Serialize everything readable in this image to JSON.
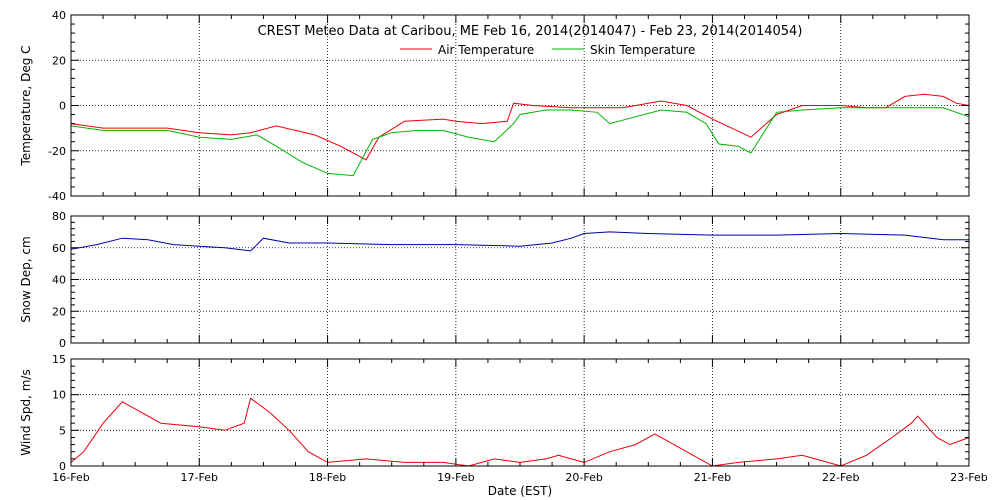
{
  "chart_data": [
    {
      "type": "line",
      "title": "CREST Meteo Data at Caribou, ME   Feb 16, 2014(2014047) - Feb 23, 2014(2014054)",
      "ylabel": "Temperature, Deg C",
      "ylim": [
        -40,
        40
      ],
      "yticks": [
        -40,
        -20,
        0,
        20,
        40
      ],
      "xlim": [
        0,
        7
      ],
      "grid": true,
      "legend": "top-center",
      "series": [
        {
          "name": "Air Temperature",
          "color": "#e8000b",
          "x": [
            0,
            0.25,
            0.5,
            0.75,
            1.0,
            1.25,
            1.4,
            1.6,
            1.9,
            2.1,
            2.3,
            2.4,
            2.6,
            2.9,
            3.0,
            3.2,
            3.4,
            3.45,
            3.6,
            3.9,
            4.1,
            4.3,
            4.6,
            4.8,
            5.0,
            5.15,
            5.3,
            5.5,
            5.7,
            6.0,
            6.2,
            6.35,
            6.5,
            6.65,
            6.8,
            6.9,
            7.0
          ],
          "y": [
            -8,
            -10,
            -10,
            -10,
            -12,
            -13,
            -12,
            -9,
            -13,
            -18,
            -24,
            -14,
            -7,
            -6,
            -7,
            -8,
            -7,
            1,
            0,
            -1,
            -1,
            -1,
            2,
            0,
            -6,
            -10,
            -14,
            -4,
            0,
            0,
            -1,
            -1,
            4,
            5,
            4,
            1,
            0
          ]
        },
        {
          "name": "Skin Temperature",
          "color": "#00b300",
          "x": [
            0,
            0.25,
            0.5,
            0.75,
            1.0,
            1.25,
            1.45,
            1.6,
            1.8,
            2.0,
            2.2,
            2.35,
            2.5,
            2.7,
            2.9,
            3.1,
            3.3,
            3.45,
            3.5,
            3.7,
            3.9,
            4.1,
            4.2,
            4.4,
            4.6,
            4.8,
            4.95,
            5.05,
            5.2,
            5.3,
            5.5,
            5.7,
            6.0,
            6.2,
            6.4,
            6.6,
            6.8,
            7.0
          ],
          "y": [
            -9,
            -11,
            -11,
            -11,
            -14,
            -15,
            -13,
            -18,
            -25,
            -30,
            -31,
            -15,
            -12,
            -11,
            -11,
            -14,
            -16,
            -8,
            -4,
            -2,
            -2,
            -3,
            -8,
            -5,
            -2,
            -3,
            -8,
            -17,
            -18,
            -21,
            -3,
            -2,
            -1,
            -1,
            -1,
            -1,
            -1,
            -5
          ]
        }
      ],
      "xticklabels": [
        "16-Feb",
        "17-Feb",
        "18-Feb",
        "19-Feb",
        "20-Feb",
        "21-Feb",
        "22-Feb",
        "23-Feb"
      ]
    },
    {
      "type": "line",
      "ylabel": "Snow Dep, cm",
      "ylim": [
        0,
        80
      ],
      "yticks": [
        0,
        20,
        40,
        60,
        80
      ],
      "xlim": [
        0,
        7
      ],
      "grid": true,
      "series": [
        {
          "color": "#0000a0",
          "x": [
            0,
            0.2,
            0.4,
            0.6,
            0.8,
            1.0,
            1.2,
            1.4,
            1.5,
            1.7,
            2.0,
            2.5,
            3.0,
            3.5,
            3.75,
            3.9,
            4.0,
            4.2,
            4.5,
            5.0,
            5.5,
            6.0,
            6.5,
            6.8,
            7.0
          ],
          "y": [
            59,
            62,
            66,
            65,
            62,
            61,
            60,
            58,
            66,
            63,
            63,
            62,
            62,
            61,
            63,
            66,
            69,
            70,
            69,
            68,
            68,
            69,
            68,
            65,
            65
          ]
        }
      ]
    },
    {
      "type": "line",
      "ylabel": "Wind Spd, m/s",
      "xlabel": "Date (EST)",
      "ylim": [
        0,
        15
      ],
      "yticks": [
        0,
        5,
        10,
        15
      ],
      "xlim": [
        0,
        7
      ],
      "grid": true,
      "series": [
        {
          "color": "#e8000b",
          "x": [
            0,
            0.1,
            0.25,
            0.4,
            0.5,
            0.7,
            1.0,
            1.2,
            1.35,
            1.4,
            1.55,
            1.7,
            1.85,
            2.0,
            2.3,
            2.6,
            2.9,
            3.1,
            3.3,
            3.5,
            3.7,
            3.8,
            3.9,
            4.0,
            4.2,
            4.4,
            4.55,
            4.7,
            4.9,
            5.0,
            5.2,
            5.5,
            5.7,
            5.9,
            6.0,
            6.2,
            6.4,
            6.55,
            6.6,
            6.75,
            6.85,
            7.0
          ],
          "y": [
            0.5,
            2,
            6,
            9,
            8,
            6,
            5.5,
            5,
            6,
            9.5,
            7.5,
            5,
            2,
            0.5,
            1,
            0.5,
            0.5,
            0,
            1,
            0.5,
            1,
            1.5,
            1,
            0.5,
            2,
            3,
            4.5,
            3,
            1,
            0,
            0.5,
            1,
            1.5,
            0.5,
            0,
            1.5,
            4,
            6,
            7,
            4,
            3,
            4
          ]
        }
      ]
    }
  ]
}
